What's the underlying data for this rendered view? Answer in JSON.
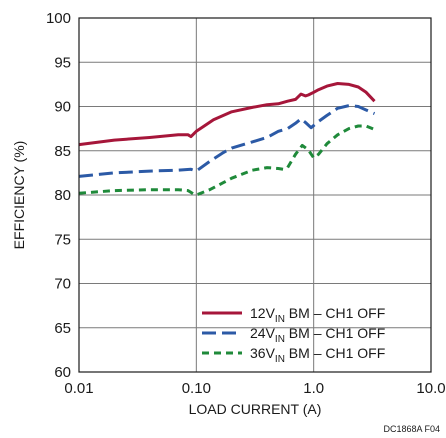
{
  "chart_data": {
    "type": "line",
    "x_scale": "log",
    "xlabel": "LOAD CURRENT (A)",
    "ylabel": "EFFICIENCY (%)",
    "xlim": [
      0.01,
      10
    ],
    "ylim": [
      60,
      100
    ],
    "x_ticks": [
      0.01,
      0.1,
      1,
      10
    ],
    "x_tick_labels": [
      "0.01",
      "0.10",
      "1.0",
      "10.0"
    ],
    "y_ticks": [
      60,
      65,
      70,
      75,
      80,
      85,
      90,
      95,
      100
    ],
    "y_tick_labels": [
      "60",
      "65",
      "70",
      "75",
      "80",
      "85",
      "90",
      "95",
      "100"
    ],
    "grid": true,
    "legend_position": "bottom-right",
    "footnote": "DC1868A F04",
    "series": [
      {
        "name": "12VIN BM – CH1 OFF",
        "label_parts": [
          "12V",
          "IN",
          " BM – CH1 OFF"
        ],
        "color": "#a6163a",
        "dash": "solid",
        "x": [
          0.01,
          0.02,
          0.04,
          0.07,
          0.085,
          0.09,
          0.1,
          0.14,
          0.2,
          0.3,
          0.4,
          0.5,
          0.6,
          0.7,
          0.78,
          0.85,
          0.9,
          1.0,
          1.1,
          1.3,
          1.6,
          2.0,
          2.4,
          2.8,
          3.3
        ],
        "y": [
          85.7,
          86.2,
          86.5,
          86.8,
          86.8,
          86.6,
          87.2,
          88.5,
          89.4,
          89.9,
          90.2,
          90.3,
          90.6,
          90.8,
          91.4,
          91.2,
          91.3,
          91.6,
          91.9,
          92.3,
          92.6,
          92.5,
          92.2,
          91.6,
          90.6
        ]
      },
      {
        "name": "24VIN BM – CH1 OFF",
        "label_parts": [
          "24V",
          "IN",
          " BM – CH1 OFF"
        ],
        "color": "#2c5aa6",
        "dash": "long",
        "x": [
          0.01,
          0.02,
          0.04,
          0.07,
          0.09,
          0.1,
          0.13,
          0.17,
          0.2,
          0.3,
          0.4,
          0.5,
          0.6,
          0.7,
          0.78,
          0.85,
          0.95,
          1.1,
          1.3,
          1.6,
          2.0,
          2.4,
          2.8,
          3.3
        ],
        "y": [
          82.1,
          82.5,
          82.7,
          82.8,
          82.9,
          82.7,
          83.8,
          84.8,
          85.3,
          86.0,
          86.5,
          87.2,
          87.5,
          88.1,
          88.6,
          88.2,
          87.6,
          88.3,
          89.0,
          89.8,
          90.1,
          90.0,
          89.6,
          89.2
        ]
      },
      {
        "name": "36VIN BM – CH1 OFF",
        "label_parts": [
          "36V",
          "IN",
          " BM – CH1 OFF"
        ],
        "color": "#1f8a3a",
        "dash": "short",
        "x": [
          0.01,
          0.02,
          0.04,
          0.07,
          0.085,
          0.095,
          0.1,
          0.13,
          0.17,
          0.2,
          0.3,
          0.4,
          0.5,
          0.55,
          0.6,
          0.7,
          0.8,
          0.9,
          1.0,
          1.1,
          1.3,
          1.6,
          2.0,
          2.4,
          2.8,
          3.3
        ],
        "y": [
          80.2,
          80.5,
          80.6,
          80.6,
          80.5,
          80.1,
          80.0,
          80.6,
          81.4,
          81.9,
          82.8,
          83.1,
          83.0,
          82.9,
          83.1,
          84.6,
          85.6,
          85.1,
          84.2,
          84.6,
          85.8,
          86.8,
          87.5,
          87.8,
          87.8,
          87.4
        ]
      }
    ]
  }
}
